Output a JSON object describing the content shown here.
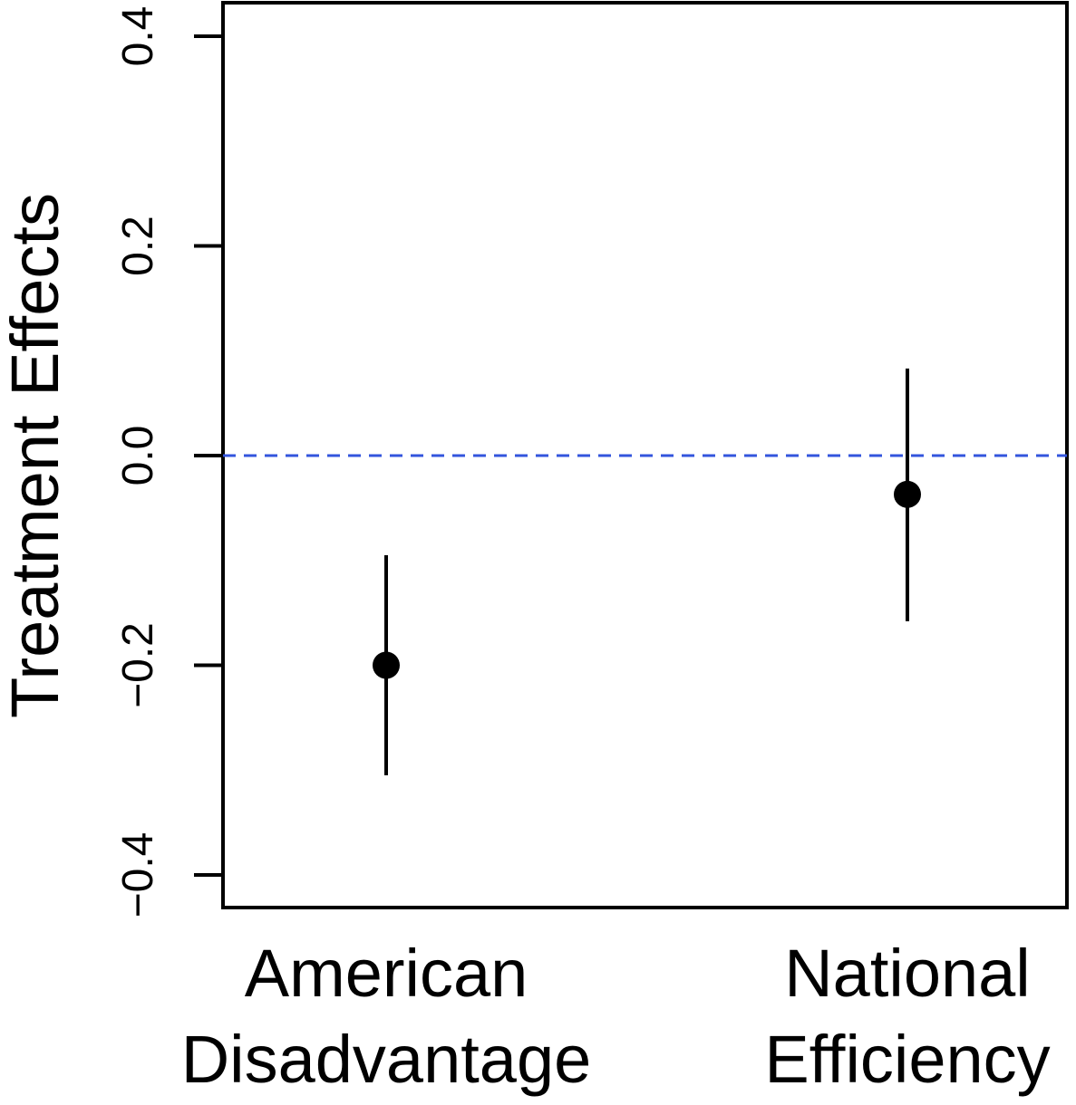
{
  "chart_data": {
    "type": "scatter",
    "ylabel": "Treatment Effects",
    "xlabel": "",
    "ylim": [
      -0.43,
      0.43
    ],
    "yticks": [
      {
        "value": -0.4,
        "label": "−0.4"
      },
      {
        "value": -0.2,
        "label": "−0.2"
      },
      {
        "value": 0.0,
        "label": "0.0"
      },
      {
        "value": 0.2,
        "label": "0.2"
      },
      {
        "value": 0.4,
        "label": "0.4"
      }
    ],
    "categories": [
      {
        "lines": [
          "American",
          "Disadvantage"
        ]
      },
      {
        "lines": [
          "National",
          "Efficiency"
        ]
      }
    ],
    "points": [
      {
        "estimate": -0.2,
        "lower": -0.305,
        "upper": -0.095
      },
      {
        "estimate": -0.037,
        "lower": -0.158,
        "upper": 0.083
      }
    ],
    "reference_line": {
      "value": 0.0,
      "style": "dashed",
      "color": "#3355dd"
    },
    "grid": false,
    "legend": "none"
  }
}
